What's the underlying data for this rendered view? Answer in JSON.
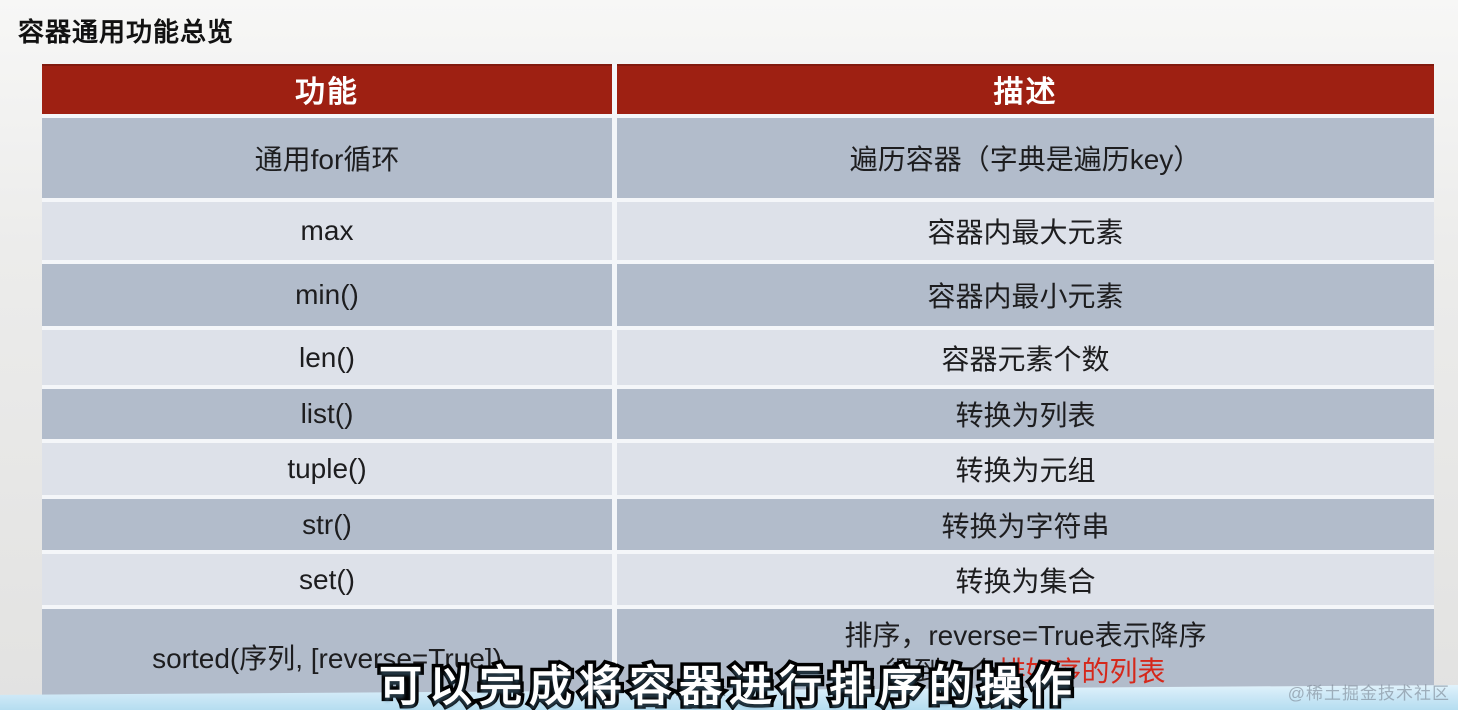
{
  "page": {
    "title": "容器通用功能总览",
    "subtitle_overlay": "可以完成将容器进行排序的操作",
    "watermark": "@稀土掘金技术社区"
  },
  "table": {
    "headers": [
      "功能",
      "描述"
    ],
    "rows": [
      {
        "func": "通用for循环",
        "desc": "遍历容器（字典是遍历key）"
      },
      {
        "func": "max",
        "desc": "容器内最大元素"
      },
      {
        "func": "min()",
        "desc": "容器内最小元素"
      },
      {
        "func": "len()",
        "desc": "容器元素个数"
      },
      {
        "func": "list()",
        "desc": "转换为列表"
      },
      {
        "func": "tuple()",
        "desc": "转换为元组"
      },
      {
        "func": "str()",
        "desc": "转换为字符串"
      },
      {
        "func": "set()",
        "desc": "转换为集合"
      },
      {
        "func": "sorted(序列, [reverse=True])",
        "desc_line1": "排序，reverse=True表示降序",
        "desc_line2_plain": "得到一个",
        "desc_line2_red": "排好序的列表"
      }
    ],
    "colors": {
      "header_bg": "#9e2012",
      "header_text": "#ffffff",
      "row_dark": "#b2bccb",
      "row_light": "#dde1e9",
      "highlight_red": "#d5281b"
    }
  }
}
